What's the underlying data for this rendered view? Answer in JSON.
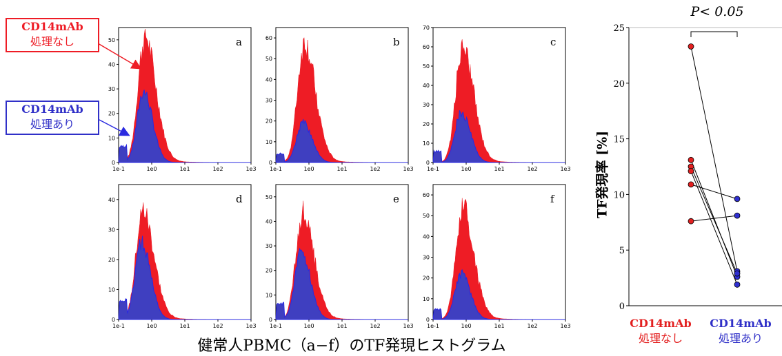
{
  "colors": {
    "untreated": "#ee1c25",
    "treated": "#3f3fc0",
    "treated_line": "#2a2ae0",
    "dot_red": "#e32020",
    "dot_blue": "#2f2fd0",
    "label_red": "#e32020",
    "label_blue": "#3030c8"
  },
  "legend": {
    "untreated": {
      "line1": "CD14mAb",
      "line2": "処理なし"
    },
    "treated": {
      "line1": "CD14mAb",
      "line2": "処理あり"
    }
  },
  "caption": "健常人PBMC（a−f）のTF発現ヒストグラム",
  "chart_data": [
    {
      "type": "area",
      "panels": [
        {
          "label": "a",
          "ymax": 55,
          "yticks": [
            0,
            10,
            20,
            30,
            40,
            50
          ],
          "untreated_peak": 50,
          "treated_peak": 29,
          "peak_x_log": -0.22
        },
        {
          "label": "b",
          "ymax": 65,
          "yticks": [
            0,
            10,
            20,
            30,
            40,
            50,
            60
          ],
          "untreated_peak": 56,
          "treated_peak": 19,
          "peak_x_log": -0.15
        },
        {
          "label": "c",
          "ymax": 70,
          "yticks": [
            0,
            10,
            20,
            30,
            40,
            50,
            60,
            70
          ],
          "untreated_peak": 59,
          "treated_peak": 26,
          "peak_x_log": -0.12
        },
        {
          "label": "d",
          "ymax": 45,
          "yticks": [
            0,
            10,
            20,
            30,
            40
          ],
          "untreated_peak": 35,
          "treated_peak": 26,
          "peak_x_log": -0.28
        },
        {
          "label": "e",
          "ymax": 55,
          "yticks": [
            0,
            10,
            20,
            30,
            40,
            50
          ],
          "untreated_peak": 43,
          "treated_peak": 28,
          "peak_x_log": -0.2
        },
        {
          "label": "f",
          "ymax": 65,
          "yticks": [
            0,
            10,
            20,
            30,
            40,
            50,
            60
          ],
          "untreated_peak": 53,
          "treated_peak": 22,
          "peak_x_log": -0.12
        }
      ],
      "xticks": [
        "1e-1",
        "1e0",
        "1e1",
        "1e2",
        "1e3"
      ]
    },
    {
      "type": "scatter",
      "ylabel": "TF発現率 [%]",
      "ylim": [
        0,
        25
      ],
      "yticks": [
        0,
        5,
        10,
        15,
        20,
        25
      ],
      "categories": [
        {
          "line1": "CD14mAb",
          "line2": "処理なし"
        },
        {
          "line1": "CD14mAb",
          "line2": "処理あり"
        }
      ],
      "pairs": [
        [
          23.3,
          3.1
        ],
        [
          13.1,
          2.6
        ],
        [
          12.5,
          2.9
        ],
        [
          12.1,
          1.9
        ],
        [
          10.9,
          9.6
        ],
        [
          7.6,
          8.1
        ]
      ],
      "annotation": "P< 0.05"
    }
  ]
}
